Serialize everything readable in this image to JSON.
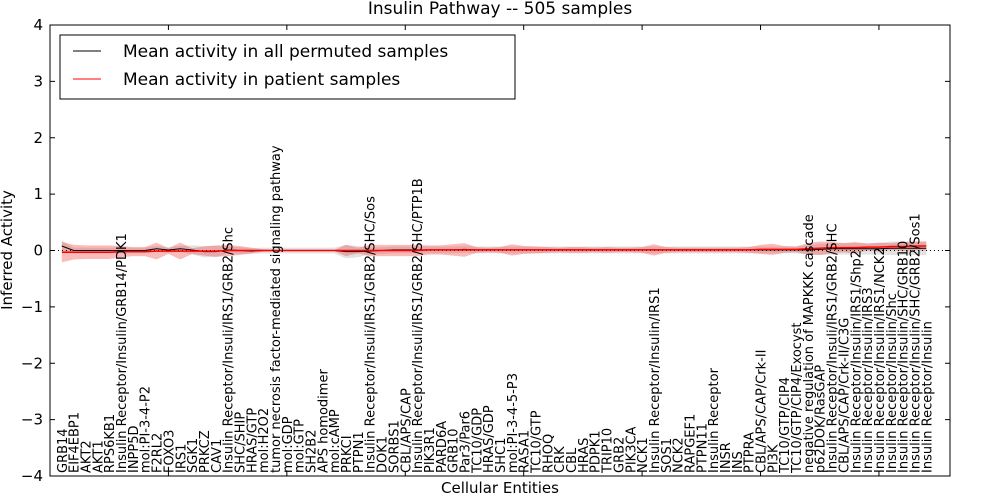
{
  "chart_data": {
    "type": "line",
    "title": "Insulin Pathway -- 505 samples",
    "xlabel": "Cellular Entities",
    "ylabel": "Inferred Activity",
    "ylim": [
      -4,
      4
    ],
    "xlim": [
      0,
      76
    ],
    "yticks": [
      -4,
      -3,
      -2,
      -1,
      0,
      1,
      2,
      3,
      4
    ],
    "ytick_labels": [
      "−4",
      "−3",
      "−2",
      "−1",
      "0",
      "1",
      "2",
      "3",
      "4"
    ],
    "legend_position": "top-left",
    "categories": [
      "GRB14",
      "EIF4EBP1",
      "AKT2",
      "AKT1",
      "RPS6KB1",
      "Insulin Receptor/Insulin/GRB14/PDK1",
      "INPP5D",
      "mol:PI-3-4-P2",
      "F2RL2",
      "FOXO3",
      "IRS1",
      "SGK1",
      "PRKCZ",
      "CAV1",
      "Insulin Receptor/Insuli/IRS1/GRB2/Shc",
      "SHC/SHIP",
      "HRAS/GTP",
      "mol:H2O2",
      "tumor necrosis factor-mediated signaling pathway",
      "mol:GDP",
      "mol:GTP",
      "SH2B2",
      "APS homodimer",
      "mol:cAMP",
      "PRKCI",
      "PTPN1",
      "Insulin Receptor/Insuli/IRS1/GRB2/SHC/Sos",
      "DOK1",
      "SORBS1",
      "CBL/APS/CAP",
      "Insulin Receptor/Insuli/IRS1/GRB2/SHC/PTP1B",
      "PIK3R1",
      "PARD6A",
      "GRB10",
      "Par3/Par6",
      "TC10/GDP",
      "HRAS/GDP",
      "SHC1",
      "mol:PI-3-4-5-P3",
      "RASA1",
      "TC10/GTP",
      "RHOQ",
      "CRK",
      "CBL",
      "HRAS",
      "PDPK1",
      "TRIP10",
      "GRB2",
      "PIK3CA",
      "NCK1",
      "Insulin Receptor/Insulin/IRS1",
      "SOS1",
      "NCK2",
      "RAPGEF1",
      "PTPN11",
      "Insulin Receptor",
      "INSR",
      "INS",
      "PTPRA",
      "CBL/APS/CAP/Crk-II",
      "PI3K",
      "TC10/GTP/CIP4",
      "TC10/GTP/CIP4/Exocyst",
      "negative regulation of MAPKKK cascade",
      "p62DOK/RasGAP",
      "Insulin Receptor/Insuli/IRS1/GRB2/SHC",
      "CBL/APS/CAP/Crk-II/C3G",
      "Insulin Receptor/Insulin/IRS1/Shp2",
      "Insulin Receptor/Insulin/IRS3",
      "Insulin Receptor/Insulin/IRS1/NCK2",
      "Insulin Receptor/Insulin/Shc",
      "Insulin Receptor/Insulin/SHC/GRB10",
      "Insulin Receptor/Insulin/SHC/GRB2/Sos1",
      "Insulin Receptor/Insulin"
    ],
    "series": [
      {
        "name": "Mean activity in all permuted samples",
        "color": "#000000",
        "values": [
          0.08,
          0.0,
          0.0,
          0.0,
          0.0,
          0.0,
          0.0,
          0.0,
          0.03,
          0.01,
          0.03,
          0.01,
          -0.02,
          -0.02,
          0.01,
          0.0,
          -0.01,
          0.0,
          0.0,
          0.0,
          0.0,
          0.0,
          0.0,
          0.0,
          -0.02,
          -0.02,
          -0.01,
          0.0,
          0.01,
          0.01,
          0.01,
          0.01,
          0.01,
          0.01,
          0.02,
          0.01,
          0.01,
          0.01,
          0.01,
          0.01,
          0.01,
          0.01,
          0.01,
          0.01,
          0.01,
          0.01,
          0.01,
          0.01,
          0.01,
          0.01,
          0.01,
          0.01,
          0.01,
          0.01,
          0.01,
          0.01,
          0.01,
          0.01,
          0.01,
          0.01,
          0.01,
          0.01,
          0.01,
          0.01,
          0.02,
          0.03,
          0.03,
          0.03,
          0.03,
          0.03,
          0.04,
          0.04,
          0.04,
          0.04
        ],
        "std": [
          0.1,
          0.05,
          0.05,
          0.05,
          0.05,
          0.05,
          0.05,
          0.05,
          0.05,
          0.05,
          0.05,
          0.08,
          0.1,
          0.1,
          0.06,
          0.06,
          0.05,
          0.05,
          0.05,
          0.05,
          0.05,
          0.05,
          0.05,
          0.05,
          0.12,
          0.1,
          0.06,
          0.06,
          0.06,
          0.06,
          0.06,
          0.06,
          0.06,
          0.06,
          0.06,
          0.06,
          0.06,
          0.06,
          0.06,
          0.06,
          0.06,
          0.06,
          0.06,
          0.06,
          0.06,
          0.06,
          0.06,
          0.06,
          0.06,
          0.06,
          0.06,
          0.06,
          0.06,
          0.06,
          0.06,
          0.06,
          0.06,
          0.06,
          0.06,
          0.06,
          0.06,
          0.06,
          0.06,
          0.08,
          0.1,
          0.1,
          0.1,
          0.1,
          0.1,
          0.1,
          0.12,
          0.12,
          0.12,
          0.12
        ]
      },
      {
        "name": "Mean activity in patient samples",
        "color": "#ff0000",
        "values": [
          -0.03,
          -0.03,
          -0.03,
          -0.03,
          -0.03,
          -0.02,
          -0.02,
          -0.02,
          -0.01,
          -0.01,
          -0.01,
          -0.01,
          -0.01,
          -0.01,
          0.0,
          0.0,
          0.0,
          0.0,
          0.0,
          0.0,
          0.0,
          0.0,
          0.0,
          0.0,
          0.0,
          0.0,
          0.0,
          0.0,
          0.0,
          0.0,
          0.0,
          0.01,
          0.01,
          0.01,
          0.01,
          0.01,
          0.01,
          0.01,
          0.01,
          0.01,
          0.01,
          0.01,
          0.01,
          0.01,
          0.01,
          0.01,
          0.01,
          0.01,
          0.01,
          0.01,
          0.01,
          0.01,
          0.01,
          0.01,
          0.01,
          0.01,
          0.01,
          0.01,
          0.01,
          0.02,
          0.02,
          0.02,
          0.02,
          0.03,
          0.04,
          0.05,
          0.05,
          0.05,
          0.06,
          0.06,
          0.07,
          0.07,
          0.08,
          0.08
        ],
        "std": [
          0.18,
          0.13,
          0.12,
          0.12,
          0.12,
          0.1,
          0.08,
          0.08,
          0.15,
          0.05,
          0.15,
          0.05,
          0.08,
          0.1,
          0.1,
          0.08,
          0.05,
          0.02,
          0.01,
          0.01,
          0.01,
          0.01,
          0.01,
          0.01,
          0.1,
          0.05,
          0.1,
          0.1,
          0.1,
          0.1,
          0.1,
          0.08,
          0.08,
          0.1,
          0.12,
          0.05,
          0.04,
          0.05,
          0.1,
          0.07,
          0.06,
          0.05,
          0.04,
          0.05,
          0.05,
          0.04,
          0.05,
          0.04,
          0.04,
          0.05,
          0.1,
          0.05,
          0.04,
          0.04,
          0.04,
          0.04,
          0.04,
          0.04,
          0.05,
          0.08,
          0.1,
          0.06,
          0.05,
          0.1,
          0.12,
          0.1,
          0.08,
          0.1,
          0.06,
          0.08,
          0.06,
          0.08,
          0.08,
          0.08
        ]
      }
    ]
  }
}
